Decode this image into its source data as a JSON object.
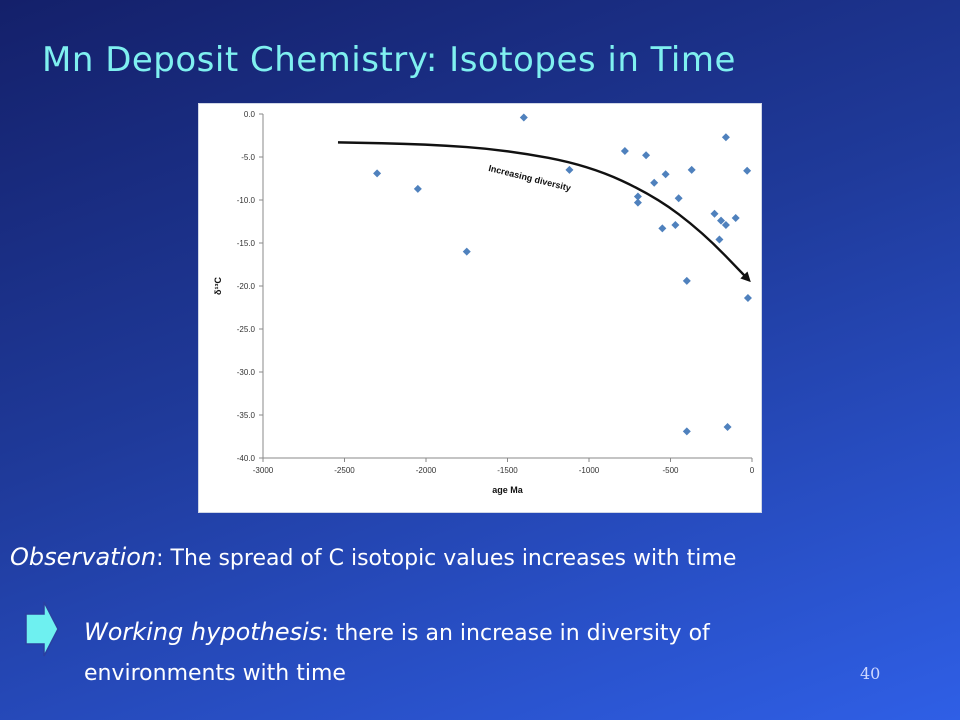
{
  "slide": {
    "title": "Mn Deposit Chemistry: Isotopes in Time",
    "observation_lead": "Observation",
    "observation_text": ": The spread of C isotopic values increases with time",
    "hypothesis_lead": "Working hypothesis",
    "hypothesis_text": ": there is an increase in diversity of environments with time",
    "page_number": "40",
    "title_color": "#7ff0f0",
    "arrow_color": "#6ef0f0"
  },
  "chart_data": {
    "type": "scatter",
    "xlabel": "age Ma",
    "ylabel": "δ¹³C",
    "xlim": [
      -3000,
      0
    ],
    "ylim": [
      -40,
      0
    ],
    "x_ticks": [
      -3000,
      -2500,
      -2000,
      -1500,
      -1000,
      -500,
      0
    ],
    "x_tick_labels": [
      "-3000",
      "-2500",
      "-2000",
      "-1500",
      "-1000",
      "-500",
      "0"
    ],
    "y_ticks": [
      0,
      -5,
      -10,
      -15,
      -20,
      -25,
      -30,
      -35,
      -40
    ],
    "y_tick_labels": [
      "0.0",
      "-5.0",
      "-10.0",
      "-15.0",
      "-20.0",
      "-25.0",
      "-30.0",
      "-35.0",
      "-40.0"
    ],
    "marker_color": "#4f81bd",
    "grid": false,
    "annotation": "Increasing diversity",
    "trend_arrow": [
      [
        -2540,
        -3.3
      ],
      [
        -2000,
        -3.5
      ],
      [
        -1500,
        -4.2
      ],
      [
        -1000,
        -6.0
      ],
      [
        -600,
        -9.5
      ],
      [
        -300,
        -13.8
      ],
      [
        -20,
        -19.3
      ]
    ],
    "points": [
      {
        "x": -2300,
        "y": -6.9
      },
      {
        "x": -2050,
        "y": -8.7
      },
      {
        "x": -1750,
        "y": -16.0
      },
      {
        "x": -1400,
        "y": -0.4
      },
      {
        "x": -1120,
        "y": -6.5
      },
      {
        "x": -780,
        "y": -4.3
      },
      {
        "x": -700,
        "y": -9.6
      },
      {
        "x": -700,
        "y": -10.3
      },
      {
        "x": -650,
        "y": -4.8
      },
      {
        "x": -600,
        "y": -8.0
      },
      {
        "x": -550,
        "y": -13.3
      },
      {
        "x": -530,
        "y": -7.0
      },
      {
        "x": -470,
        "y": -12.9
      },
      {
        "x": -450,
        "y": -9.8
      },
      {
        "x": -400,
        "y": -19.4
      },
      {
        "x": -400,
        "y": -36.9
      },
      {
        "x": -370,
        "y": -6.5
      },
      {
        "x": -230,
        "y": -11.6
      },
      {
        "x": -200,
        "y": -14.6
      },
      {
        "x": -190,
        "y": -12.4
      },
      {
        "x": -160,
        "y": -2.7
      },
      {
        "x": -160,
        "y": -12.9
      },
      {
        "x": -150,
        "y": -36.4
      },
      {
        "x": -100,
        "y": -12.1
      },
      {
        "x": -30,
        "y": -6.6
      },
      {
        "x": -25,
        "y": -21.4
      }
    ]
  }
}
